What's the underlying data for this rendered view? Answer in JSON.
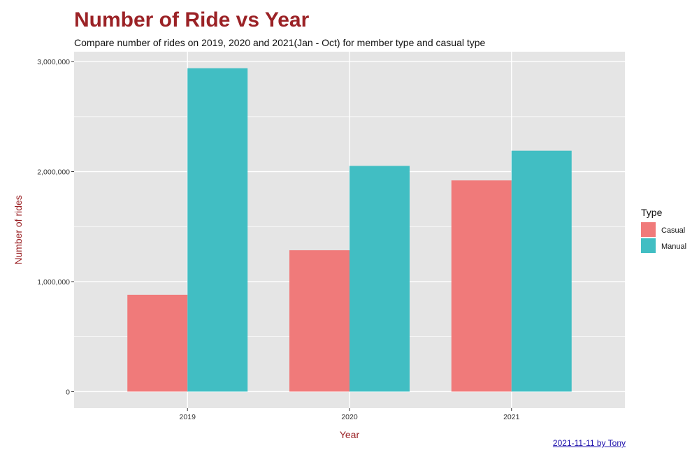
{
  "chart_data": {
    "type": "bar",
    "title": "Number of Ride vs Year",
    "subtitle": "Compare number of rides on 2019, 2020 and 2021(Jan - Oct) for member type and casual type",
    "xlabel": "Year",
    "ylabel": "Number of rides",
    "categories": [
      "2019",
      "2020",
      "2021"
    ],
    "series": [
      {
        "name": "Casual",
        "color": "#F07A7A",
        "values": [
          880000,
          1285000,
          1920000
        ]
      },
      {
        "name": "Manual",
        "color": "#41BEC3",
        "values": [
          2940000,
          2052000,
          2190000
        ]
      }
    ],
    "ylim": [
      -150000,
      3090000
    ],
    "yticks": [
      0,
      1000000,
      2000000,
      3000000
    ],
    "ytick_labels": [
      "0",
      "1,000,000",
      "2,000,000",
      "3,000,000"
    ],
    "grid": true,
    "legend": {
      "title": "Type",
      "position": "right"
    },
    "caption": "2021-11-11 by Tony",
    "colors": {
      "title": "#9b2226",
      "axis_label": "#9b2226",
      "panel": "#e5e5e5",
      "grid": "#ffffff"
    }
  }
}
